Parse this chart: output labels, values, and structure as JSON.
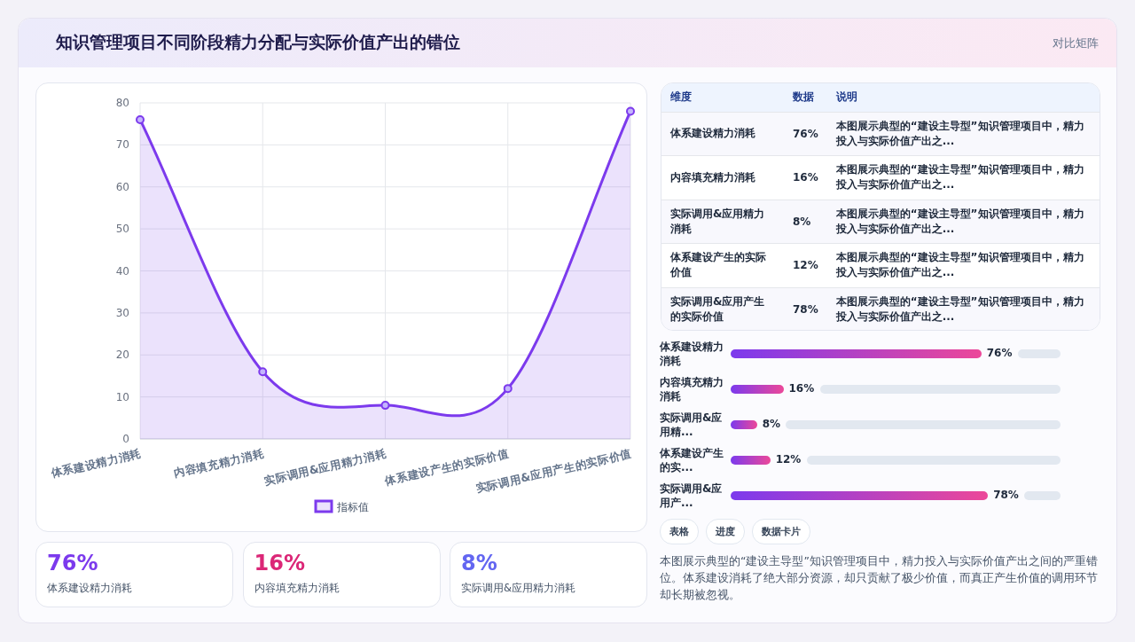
{
  "chart_data": [
    {
      "type": "other",
      "title": "知识管理项目不同阶段精力分配与实际价值产出的错位",
      "annotations": [
        "对比矩阵"
      ]
    },
    {
      "type": "line",
      "categories": [
        "体系建设精力消耗",
        "内容填充精力消耗",
        "实际调用&应用精力消耗",
        "体系建设产生的实际价值",
        "实际调用&应用产生的实际价值"
      ],
      "series": [
        {
          "name": "指标值",
          "color": "#7c3aed",
          "type": "area",
          "values": [
            76,
            16,
            8,
            12,
            78
          ]
        }
      ],
      "ylim": [
        0,
        80
      ],
      "yticks": [
        0,
        10,
        20,
        30,
        40,
        50,
        60,
        70,
        80
      ],
      "grid": true,
      "legend": "bottom",
      "marker": "circle"
    },
    {
      "type": "other",
      "categories": [
        "体系建设精力消耗",
        "内容填充精力消耗",
        "实际调用&应用精力消耗",
        "体系建设产生的实际价值",
        "实际调用&应用产生的实际价值"
      ],
      "value_labels": [
        "76%",
        "16%",
        "8%",
        "12%",
        "78%"
      ],
      "annotations": [
        "维度",
        "数据",
        "说明",
        "本图展示典型的“建设主导型”知识管理项目中，精力投入与实际价值产出之...",
        "本图展示典型的“建设主导型”知识管理项目中，精力投入与实际价值产出之...",
        "本图展示典型的“建设主导型”知识管理项目中，精力投入与实际价值产出之...",
        "本图展示典型的“建设主导型”知识管理项目中，精力投入与实际价值产出之...",
        "本图展示典型的“建设主导型”知识管理项目中，精力投入与实际价值产出之..."
      ]
    },
    {
      "type": "bar",
      "orientation": "horizontal",
      "categories": [
        "体系建设精力消耗",
        "内容填充精力消耗",
        "实际调用&应用精...",
        "体系建设产生的实...",
        "实际调用&应用产..."
      ],
      "values": [
        76,
        16,
        8,
        12,
        78
      ],
      "value_labels": [
        "76%",
        "16%",
        "8%",
        "12%",
        "78%"
      ],
      "color": "#7c3aed"
    },
    {
      "type": "other",
      "annotations": [
        "表格",
        "进度",
        "数据卡片",
        "本图展示典型的“建设主导型”知识管理项目中，精力投入与实际价值产出之间的严重错位。体系建设消耗了绝大部分资源，却只贡献了极少价值，而真正产生价值的调用环节却长期被忽视。"
      ]
    },
    {
      "type": "other",
      "categories": [
        "体系建设精力消耗",
        "内容填充精力消耗",
        "实际调用&应用精力消耗"
      ],
      "value_labels": [
        "76%",
        "16%",
        "8%"
      ],
      "colors": [
        "#7c3aed",
        "#db2777",
        "#6366f1"
      ]
    }
  ]
}
